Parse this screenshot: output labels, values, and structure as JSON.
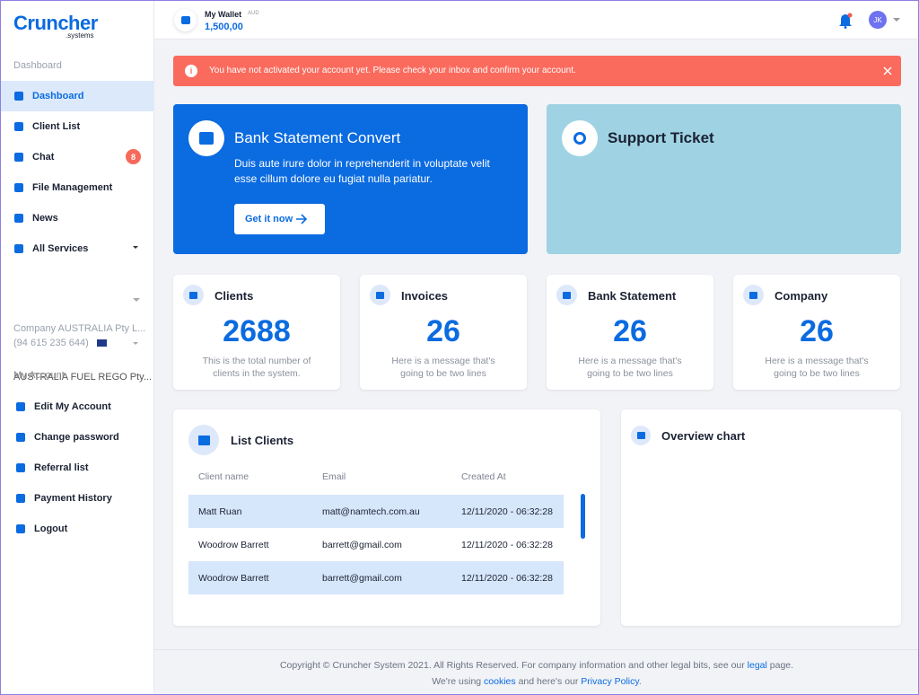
{
  "sidebar": {
    "logo": "Cruncher",
    "logo_sub": ".systems",
    "section": "Dashboard",
    "nav": [
      {
        "label": "Dashboard"
      },
      {
        "label": "Client List"
      },
      {
        "label": "Chat",
        "badge": 8
      },
      {
        "label": "File Management"
      },
      {
        "label": "News"
      },
      {
        "label": "All Services"
      }
    ],
    "companies": [
      {
        "name": "Company AUSTRALIA Pty L...",
        "phone": "(94 615 235 644)"
      },
      {
        "name": "AUSTRALIA FUEL REGO Pty..."
      }
    ],
    "account_heading": "My Account",
    "account": [
      "Edit My Account",
      "Change password",
      "Referral list",
      "Payment History",
      "Logout"
    ]
  },
  "topbar": {
    "wallet_label": "My Wallet",
    "currency": "AUD",
    "amount": "1,500,00",
    "avatar": "JK"
  },
  "alert": "You have not activated your account yet. Please check your inbox and confirm your account.",
  "promo": {
    "title": "Bank Statement Convert",
    "text": "Duis aute irure dolor in reprehenderit in voluptate velit esse cillum dolore eu fugiat nulla pariatur.",
    "button": "Get it now"
  },
  "support": {
    "title": "Support Ticket"
  },
  "stats": [
    {
      "title": "Clients",
      "value": 2688,
      "text": "This is the total number of clients in the system."
    },
    {
      "title": "Invoices",
      "value": 26,
      "text": "Here is a message that's going to be two lines"
    },
    {
      "title": "Bank Statement",
      "value": 26,
      "text": "Here is a message that's going to be two lines"
    },
    {
      "title": "Company",
      "value": 26,
      "text": "Here is a message that's going to be two lines"
    }
  ],
  "table": {
    "title": "List Clients",
    "columns": [
      "Client name",
      "Email",
      "Created At"
    ],
    "rows": [
      [
        "Matt Ruan",
        "matt@namtech.com.au",
        "12/11/2020 - 06:32:28"
      ],
      [
        "Woodrow Barrett",
        "barrett@gmail.com",
        "12/11/2020 - 06:32:28"
      ],
      [
        "Woodrow Barrett",
        "barrett@gmail.com",
        "12/11/2020 - 06:32:28"
      ]
    ]
  },
  "overview": {
    "title": "Overview chart"
  },
  "footer": {
    "line1": [
      "Copyright © Cruncher System 2021. All Rights Reserved. For company information and other legal bits, see our ",
      "legal",
      " page."
    ],
    "line2": [
      "We're using ",
      "cookies",
      " and here's our ",
      "Privacy Policy",
      "."
    ]
  }
}
